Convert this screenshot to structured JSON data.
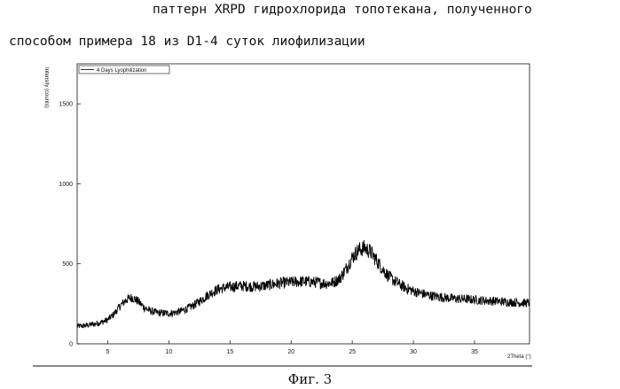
{
  "caption": {
    "line1": "паттерн XRPD гидрохлорида топотекана, полученного",
    "line2": "способом примера 18 из D1-4 суток лиофилизации"
  },
  "figure_label": "Фиг. 3",
  "chart_data": {
    "type": "line",
    "xlabel": "2Theta (°)",
    "ylabel": "Intensity (counts)",
    "xlim": [
      2.5,
      39.5
    ],
    "ylim": [
      0,
      1750
    ],
    "x_ticks": [
      5,
      10,
      15,
      20,
      25,
      30,
      35
    ],
    "y_ticks": [
      0,
      500,
      1000,
      1500
    ],
    "legend_position": "top-left",
    "line_color": "#000000",
    "series": [
      {
        "name": "4 Days Lyophilization",
        "x": [
          2.5,
          3,
          3.5,
          4,
          4.5,
          5,
          5.5,
          6,
          6.5,
          7,
          7.5,
          8,
          8.5,
          9,
          9.5,
          10,
          10.5,
          11,
          11.5,
          12,
          12.5,
          13,
          13.5,
          14,
          14.5,
          15,
          15.5,
          16,
          16.5,
          17,
          17.5,
          18,
          18.5,
          19,
          19.5,
          20,
          20.5,
          21,
          21.5,
          22,
          22.5,
          23,
          23.5,
          24,
          24.5,
          25,
          25.5,
          26,
          26.5,
          27,
          27.5,
          28,
          28.5,
          29,
          29.5,
          30,
          30.5,
          31,
          31.5,
          32,
          32.5,
          33,
          33.5,
          34,
          34.5,
          35,
          35.5,
          36,
          36.5,
          37,
          37.5,
          38,
          38.5,
          39,
          39.5
        ],
        "y": [
          110,
          112,
          118,
          125,
          135,
          150,
          185,
          235,
          275,
          290,
          265,
          225,
          205,
          195,
          192,
          190,
          195,
          205,
          220,
          240,
          265,
          295,
          320,
          340,
          350,
          355,
          360,
          362,
          360,
          358,
          360,
          365,
          372,
          378,
          382,
          385,
          388,
          390,
          388,
          385,
          380,
          378,
          385,
          410,
          470,
          540,
          585,
          600,
          575,
          520,
          465,
          420,
          390,
          365,
          345,
          330,
          318,
          308,
          300,
          295,
          290,
          285,
          282,
          280,
          278,
          275,
          272,
          270,
          268,
          265,
          262,
          260,
          258,
          256,
          255
        ]
      }
    ]
  }
}
